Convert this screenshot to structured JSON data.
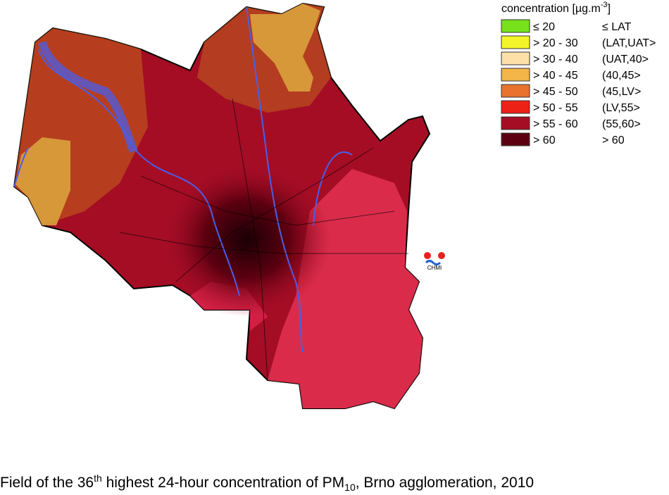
{
  "legend": {
    "title_parts": [
      "concentration [µg.m",
      "-3",
      "]"
    ],
    "items": [
      {
        "range": "≤ 20",
        "class": "≤ LAT",
        "color": "#77e21c"
      },
      {
        "range": "> 20 - 30",
        "class": "(LAT,UAT>",
        "color": "#f4f42a"
      },
      {
        "range": "> 30 - 40",
        "class": "(UAT,40>",
        "color": "#fde0a8"
      },
      {
        "range": "> 40 - 45",
        "class": "(40,45>",
        "color": "#f3b548"
      },
      {
        "range": "> 45 - 50",
        "class": "(45,LV>",
        "color": "#e8722e"
      },
      {
        "range": "> 50 - 55",
        "class": "(LV,55>",
        "color": "#ee2116"
      },
      {
        "range": "> 55 - 60",
        "class": "(55,60>",
        "color": "#a50d25"
      },
      {
        "range": "> 60",
        "class": "> 60",
        "color": "#5c0010"
      }
    ]
  },
  "logo": {
    "text": "CHMI"
  },
  "caption": {
    "parts": [
      "Field of the 36",
      "th",
      " highest 24-hour concentration of PM",
      "10",
      ", Brno agglomeration, 2010"
    ]
  }
}
